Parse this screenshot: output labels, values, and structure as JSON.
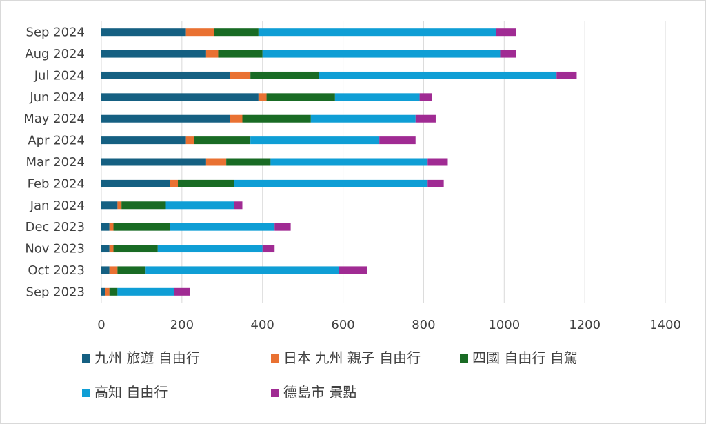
{
  "chart_data": {
    "type": "bar",
    "orientation": "horizontal",
    "stacked": true,
    "categories": [
      "Sep 2024",
      "Aug 2024",
      "Jul 2024",
      "Jun 2024",
      "May 2024",
      "Apr 2024",
      "Mar 2024",
      "Feb 2024",
      "Jan 2024",
      "Dec 2023",
      "Nov 2023",
      "Oct 2023",
      "Sep 2023"
    ],
    "series": [
      {
        "name": "九州 旅遊 自由行",
        "color": "#156082",
        "values": [
          210,
          260,
          320,
          390,
          320,
          210,
          260,
          170,
          40,
          20,
          20,
          20,
          10
        ]
      },
      {
        "name": "日本 九州 親子 自由行",
        "color": "#e97132",
        "values": [
          70,
          30,
          50,
          20,
          30,
          20,
          50,
          20,
          10,
          10,
          10,
          20,
          10
        ]
      },
      {
        "name": "四國 自由行 自駕",
        "color": "#196b24",
        "values": [
          110,
          110,
          170,
          170,
          170,
          140,
          110,
          140,
          110,
          140,
          110,
          70,
          20
        ]
      },
      {
        "name": "高知 自由行",
        "color": "#0f9ed5",
        "values": [
          590,
          590,
          590,
          210,
          260,
          320,
          390,
          480,
          170,
          260,
          260,
          480,
          140
        ]
      },
      {
        "name": "德島市 景點",
        "color": "#a02b93",
        "values": [
          50,
          40,
          50,
          30,
          50,
          90,
          50,
          40,
          20,
          40,
          30,
          70,
          40
        ]
      }
    ],
    "xlim": [
      0,
      1400
    ],
    "xticks": [
      "0",
      "200",
      "400",
      "600",
      "800",
      "1000",
      "1200",
      "1400"
    ],
    "grid": true,
    "legend_position": "bottom"
  }
}
